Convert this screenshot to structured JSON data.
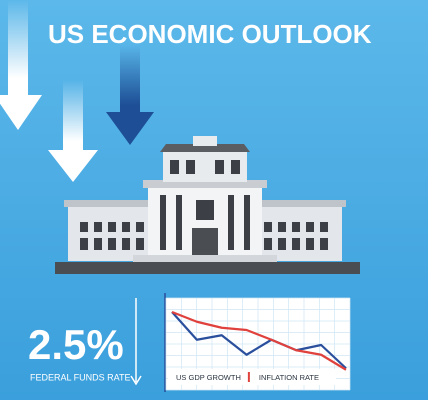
{
  "header": {
    "title": "US ECONOMIC OUTLOOK"
  },
  "stat": {
    "value": "2.5%",
    "label": "FEDERAL FUNDS RATE"
  },
  "chart_data": {
    "type": "line",
    "x": [
      0,
      1,
      2,
      3,
      4,
      5,
      6,
      7
    ],
    "xlim": [
      0,
      7
    ],
    "ylim": [
      0,
      10
    ],
    "grid": true,
    "series": [
      {
        "name": "US GDP GROWTH",
        "color": "#2a4f9c",
        "values": [
          8.4,
          4.7,
          5.3,
          2.7,
          4.7,
          3.3,
          4.0,
          0.9
        ]
      },
      {
        "name": "INFLATION RATE",
        "color": "#e0413c",
        "values": [
          8.4,
          7.1,
          6.3,
          6.0,
          4.7,
          3.3,
          2.7,
          0.7
        ]
      }
    ]
  }
}
